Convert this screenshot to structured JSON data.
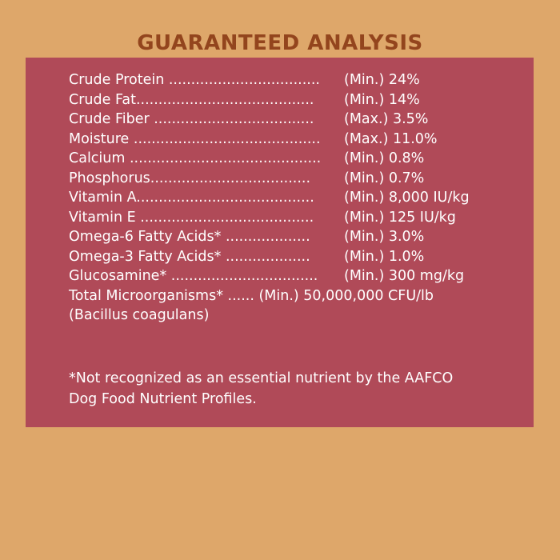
{
  "title": "GUARANTEED ANALYSIS",
  "rows": [
    {
      "name": "Crude Protein ..................................",
      "value": "(Min.) 24%"
    },
    {
      "name": "Crude Fat........................................",
      "value": "(Min.) 14%"
    },
    {
      "name": "Crude Fiber ....................................",
      "value": "(Max.) 3.5%"
    },
    {
      "name": "Moisture ..........................................",
      "value": "(Max.) 11.0%"
    },
    {
      "name": "Calcium ...........................................",
      "value": "(Min.) 0.8%"
    },
    {
      "name": "Phosphorus....................................",
      "value": "(Min.) 0.7%"
    },
    {
      "name": "Vitamin A........................................",
      "value": "(Min.) 8,000 IU/kg"
    },
    {
      "name": "Vitamin E .......................................",
      "value": "(Min.) 125 IU/kg"
    },
    {
      "name": "Omega-6 Fatty Acids* ...................",
      "value": "(Min.) 3.0%"
    },
    {
      "name": "Omega-3 Fatty Acids* ...................",
      "value": "(Min.) 1.0%"
    },
    {
      "name": "Glucosamine* .................................",
      "value": "(Min.) 300 mg/kg"
    }
  ],
  "microorganisms": {
    "line1": "Total Microorganisms* ...... (Min.) 50,000,000 CFU/lb",
    "line2": "(Bacillus coagulans)"
  },
  "footnote": {
    "line1": "*Not recognized as an essential nutrient by the AAFCO",
    "line2": "Dog Food Nutrient Profiles."
  }
}
